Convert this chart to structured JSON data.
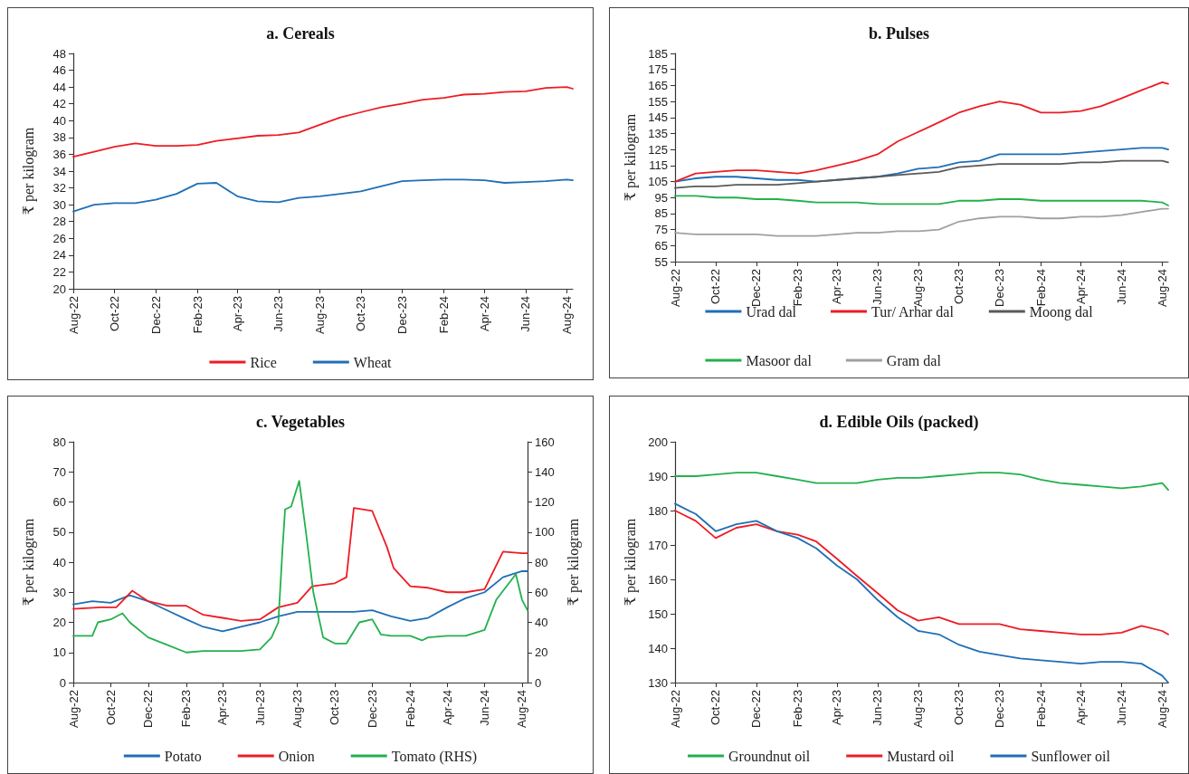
{
  "chart_data": [
    {
      "type": "line",
      "title": "a. Cereals",
      "ylabel": "₹ per kilogram",
      "legend": "bottom",
      "grid": false,
      "marker": "none",
      "line_style": "solid",
      "x": [
        "2022-08-01",
        "2022-09-01",
        "2022-10-01",
        "2022-11-01",
        "2022-12-01",
        "2023-01-01",
        "2023-02-01",
        "2023-03-01",
        "2023-04-01",
        "2023-05-01",
        "2023-06-01",
        "2023-07-01",
        "2023-08-01",
        "2023-09-01",
        "2023-10-01",
        "2023-11-01",
        "2023-12-01",
        "2024-01-01",
        "2024-02-01",
        "2024-03-01",
        "2024-04-01",
        "2024-05-01",
        "2024-06-01",
        "2024-07-01",
        "2024-08-01",
        "2024-08-10"
      ],
      "xlim": [
        "2022-08-01",
        "2024-08-10"
      ],
      "xticks": [
        {
          "value": "2022-08",
          "label": "Aug-22"
        },
        {
          "value": "2022-10",
          "label": "Oct-22"
        },
        {
          "value": "2022-12",
          "label": "Dec-22"
        },
        {
          "value": "2023-02",
          "label": "Feb-23"
        },
        {
          "value": "2023-04",
          "label": "Apr-23"
        },
        {
          "value": "2023-06",
          "label": "Jun-23"
        },
        {
          "value": "2023-08",
          "label": "Aug-23"
        },
        {
          "value": "2023-10",
          "label": "Oct-23"
        },
        {
          "value": "2023-12",
          "label": "Dec-23"
        },
        {
          "value": "2024-02",
          "label": "Feb-24"
        },
        {
          "value": "2024-04",
          "label": "Apr-24"
        },
        {
          "value": "2024-06",
          "label": "Jun-24"
        },
        {
          "value": "2024-08",
          "label": "Aug-24"
        }
      ],
      "ylim": [
        20,
        48
      ],
      "yticks": [
        20,
        22,
        24,
        26,
        28,
        30,
        32,
        34,
        36,
        38,
        40,
        42,
        44,
        46,
        48
      ],
      "series": [
        {
          "name": "Rice",
          "color": "#ed1c24",
          "values": [
            35.7,
            36.3,
            36.9,
            37.3,
            37.0,
            37.0,
            37.1,
            37.6,
            37.9,
            38.2,
            38.3,
            38.6,
            39.5,
            40.4,
            41.0,
            41.6,
            42.0,
            42.5,
            42.7,
            43.1,
            43.2,
            43.4,
            43.5,
            43.9,
            44.0,
            43.8
          ]
        },
        {
          "name": "Wheat",
          "color": "#1f6fb5",
          "values": [
            29.2,
            30.0,
            30.2,
            30.2,
            30.6,
            31.3,
            32.5,
            32.6,
            31.0,
            30.4,
            30.3,
            30.8,
            31.0,
            31.3,
            31.6,
            32.2,
            32.8,
            32.9,
            33.0,
            33.0,
            32.9,
            32.6,
            32.7,
            32.8,
            33.0,
            32.9
          ]
        }
      ]
    },
    {
      "type": "line",
      "title": "b. Pulses",
      "ylabel": "₹ per kilogram",
      "legend": "bottom",
      "grid": false,
      "marker": "none",
      "line_style": "solid",
      "x": [
        "2022-08-01",
        "2022-09-01",
        "2022-10-01",
        "2022-11-01",
        "2022-12-01",
        "2023-01-01",
        "2023-02-01",
        "2023-03-01",
        "2023-04-01",
        "2023-05-01",
        "2023-06-01",
        "2023-07-01",
        "2023-08-01",
        "2023-09-01",
        "2023-10-01",
        "2023-11-01",
        "2023-12-01",
        "2024-01-01",
        "2024-02-01",
        "2024-03-01",
        "2024-04-01",
        "2024-05-01",
        "2024-06-01",
        "2024-07-01",
        "2024-08-01",
        "2024-08-10"
      ],
      "xlim": [
        "2022-08-01",
        "2024-08-10"
      ],
      "xticks": [
        {
          "value": "2022-08",
          "label": "Aug-22"
        },
        {
          "value": "2022-10",
          "label": "Oct-22"
        },
        {
          "value": "2022-12",
          "label": "Dec-22"
        },
        {
          "value": "2023-02",
          "label": "Feb-23"
        },
        {
          "value": "2023-04",
          "label": "Apr-23"
        },
        {
          "value": "2023-06",
          "label": "Jun-23"
        },
        {
          "value": "2023-08",
          "label": "Aug-23"
        },
        {
          "value": "2023-10",
          "label": "Oct-23"
        },
        {
          "value": "2023-12",
          "label": "Dec-23"
        },
        {
          "value": "2024-02",
          "label": "Feb-24"
        },
        {
          "value": "2024-04",
          "label": "Apr-24"
        },
        {
          "value": "2024-06",
          "label": "Jun-24"
        },
        {
          "value": "2024-08",
          "label": "Aug-24"
        }
      ],
      "ylim": [
        55,
        185
      ],
      "yticks": [
        55,
        65,
        75,
        85,
        95,
        105,
        115,
        125,
        135,
        145,
        155,
        165,
        175,
        185
      ],
      "series": [
        {
          "name": "Urad dal",
          "color": "#1f6fb5",
          "values": [
            105,
            107,
            108,
            108,
            107,
            106,
            106,
            105,
            106,
            107,
            108,
            110,
            113,
            114,
            117,
            118,
            122,
            122,
            122,
            122,
            123,
            124,
            125,
            126,
            126,
            125
          ]
        },
        {
          "name": "Tur/ Arhar dal",
          "color": "#ed1c24",
          "values": [
            105,
            110,
            111,
            112,
            112,
            111,
            110,
            112,
            115,
            118,
            122,
            130,
            136,
            142,
            148,
            152,
            155,
            153,
            148,
            148,
            149,
            152,
            157,
            162,
            167,
            166
          ]
        },
        {
          "name": "Moong dal",
          "color": "#595959",
          "values": [
            101,
            102,
            102,
            103,
            103,
            103,
            104,
            105,
            106,
            107,
            108,
            109,
            110,
            111,
            114,
            115,
            116,
            116,
            116,
            116,
            117,
            117,
            118,
            118,
            118,
            117
          ]
        },
        {
          "name": "Masoor dal",
          "color": "#22b14c",
          "values": [
            96,
            96,
            95,
            95,
            94,
            94,
            93,
            92,
            92,
            92,
            91,
            91,
            91,
            91,
            93,
            93,
            94,
            94,
            93,
            93,
            93,
            93,
            93,
            93,
            92,
            90
          ]
        },
        {
          "name": "Gram dal",
          "color": "#a0a0a0",
          "values": [
            73,
            72,
            72,
            72,
            72,
            71,
            71,
            71,
            72,
            73,
            73,
            74,
            74,
            75,
            80,
            82,
            83,
            83,
            82,
            82,
            83,
            83,
            84,
            86,
            88,
            88
          ]
        }
      ]
    },
    {
      "type": "line",
      "title": "c. Vegetables",
      "ylabel": "₹ per kilogram",
      "y2label": "₹ per kilogram",
      "legend": "bottom",
      "grid": false,
      "marker": "none",
      "line_style": "solid",
      "x": [
        "2022-08-01",
        "2022-09-01",
        "2022-10-01",
        "2022-11-01",
        "2022-12-01",
        "2023-01-01",
        "2023-02-01",
        "2023-03-01",
        "2023-04-01",
        "2023-05-01",
        "2023-06-01",
        "2023-07-01",
        "2023-08-01",
        "2023-09-01",
        "2023-10-01",
        "2023-11-01",
        "2023-12-01",
        "2024-01-01",
        "2024-02-01",
        "2024-03-01",
        "2024-04-01",
        "2024-05-01",
        "2024-06-01",
        "2024-07-01",
        "2024-08-01",
        "2024-08-10"
      ],
      "xlim": [
        "2022-08-01",
        "2024-08-10"
      ],
      "xticks": [
        {
          "value": "2022-08",
          "label": "Aug-22"
        },
        {
          "value": "2022-10",
          "label": "Oct-22"
        },
        {
          "value": "2022-12",
          "label": "Dec-22"
        },
        {
          "value": "2023-02",
          "label": "Feb-23"
        },
        {
          "value": "2023-04",
          "label": "Apr-23"
        },
        {
          "value": "2023-06",
          "label": "Jun-23"
        },
        {
          "value": "2023-08",
          "label": "Aug-23"
        },
        {
          "value": "2023-10",
          "label": "Oct-23"
        },
        {
          "value": "2023-12",
          "label": "Dec-23"
        },
        {
          "value": "2024-02",
          "label": "Feb-24"
        },
        {
          "value": "2024-04",
          "label": "Apr-24"
        },
        {
          "value": "2024-06",
          "label": "Jun-24"
        },
        {
          "value": "2024-08",
          "label": "Aug-24"
        }
      ],
      "ylim": [
        0,
        80
      ],
      "yticks": [
        0,
        10,
        20,
        30,
        40,
        50,
        60,
        70,
        80
      ],
      "y2lim": [
        0,
        160
      ],
      "y2ticks": [
        0,
        20,
        40,
        60,
        80,
        100,
        120,
        140,
        160
      ],
      "series": [
        {
          "name": "Potato",
          "color": "#1f6fb5",
          "values": [
            26,
            27,
            26.5,
            29,
            27,
            24,
            21,
            18.5,
            17,
            18.5,
            20,
            22,
            23.5,
            23.5,
            23.5,
            23.5,
            24,
            22,
            20.5,
            21.5,
            25,
            28,
            30,
            35,
            37,
            37
          ]
        },
        {
          "name": "Onion",
          "color": "#ed1c24",
          "x": [
            "2022-08-01",
            "2022-09-15",
            "2022-10-10",
            "2022-11-05",
            "2022-12-01",
            "2023-01-01",
            "2023-02-01",
            "2023-03-01",
            "2023-04-01",
            "2023-05-01",
            "2023-06-01",
            "2023-07-01",
            "2023-08-01",
            "2023-08-25",
            "2023-10-01",
            "2023-10-20",
            "2023-11-01",
            "2023-12-01",
            "2023-12-25",
            "2024-01-05",
            "2024-02-01",
            "2024-03-01",
            "2024-04-01",
            "2024-05-01",
            "2024-06-01",
            "2024-07-01",
            "2024-08-01",
            "2024-08-10"
          ],
          "values": [
            24.5,
            25,
            25,
            30.5,
            27,
            25.5,
            25.5,
            22.5,
            21.5,
            20.5,
            21,
            25,
            26.5,
            32,
            33,
            35,
            58,
            57,
            45,
            38,
            32,
            31.5,
            30,
            30,
            31,
            43.5,
            43,
            43
          ]
        },
        {
          "name": "Tomato (RHS)",
          "color": "#22b14c",
          "axis": "y2",
          "x": [
            "2022-08-01",
            "2022-09-01",
            "2022-09-10",
            "2022-10-01",
            "2022-10-20",
            "2022-11-01",
            "2022-12-01",
            "2023-01-01",
            "2023-02-01",
            "2023-03-01",
            "2023-04-01",
            "2023-05-01",
            "2023-06-01",
            "2023-06-20",
            "2023-07-01",
            "2023-07-08",
            "2023-07-12",
            "2023-07-22",
            "2023-08-04",
            "2023-08-15",
            "2023-08-27",
            "2023-09-12",
            "2023-10-01",
            "2023-10-20",
            "2023-11-10",
            "2023-12-01",
            "2023-12-15",
            "2024-01-01",
            "2024-02-01",
            "2024-02-20",
            "2024-03-01",
            "2024-04-01",
            "2024-05-01",
            "2024-06-01",
            "2024-06-20",
            "2024-07-22",
            "2024-08-01",
            "2024-08-10"
          ],
          "values": [
            31,
            31,
            40,
            42,
            46,
            40,
            30,
            25,
            20,
            21,
            21,
            21,
            22,
            30,
            40,
            90,
            115,
            117,
            134,
            100,
            60,
            30,
            26,
            26,
            40,
            42,
            32,
            31,
            31,
            28,
            30,
            31,
            31,
            35,
            55,
            72,
            55,
            48
          ]
        }
      ]
    },
    {
      "type": "line",
      "title": "d. Edible Oils (packed)",
      "ylabel": "₹ per kilogram",
      "legend": "bottom",
      "grid": false,
      "marker": "none",
      "line_style": "solid",
      "x": [
        "2022-08-01",
        "2022-09-01",
        "2022-10-01",
        "2022-11-01",
        "2022-12-01",
        "2023-01-01",
        "2023-02-01",
        "2023-03-01",
        "2023-04-01",
        "2023-05-01",
        "2023-06-01",
        "2023-07-01",
        "2023-08-01",
        "2023-09-01",
        "2023-10-01",
        "2023-11-01",
        "2023-12-01",
        "2024-01-01",
        "2024-02-01",
        "2024-03-01",
        "2024-04-01",
        "2024-05-01",
        "2024-06-01",
        "2024-07-01",
        "2024-08-01",
        "2024-08-10"
      ],
      "xlim": [
        "2022-08-01",
        "2024-08-10"
      ],
      "xticks": [
        {
          "value": "2022-08",
          "label": "Aug-22"
        },
        {
          "value": "2022-10",
          "label": "Oct-22"
        },
        {
          "value": "2022-12",
          "label": "Dec-22"
        },
        {
          "value": "2023-02",
          "label": "Feb-23"
        },
        {
          "value": "2023-04",
          "label": "Apr-23"
        },
        {
          "value": "2023-06",
          "label": "Jun-23"
        },
        {
          "value": "2023-08",
          "label": "Aug-23"
        },
        {
          "value": "2023-10",
          "label": "Oct-23"
        },
        {
          "value": "2023-12",
          "label": "Dec-23"
        },
        {
          "value": "2024-02",
          "label": "Feb-24"
        },
        {
          "value": "2024-04",
          "label": "Apr-24"
        },
        {
          "value": "2024-06",
          "label": "Jun-24"
        },
        {
          "value": "2024-08",
          "label": "Aug-24"
        }
      ],
      "ylim": [
        130,
        200
      ],
      "yticks": [
        130,
        140,
        150,
        160,
        170,
        180,
        190,
        200
      ],
      "series": [
        {
          "name": "Groundnut oil",
          "color": "#22b14c",
          "values": [
            190,
            190,
            190.5,
            191,
            191,
            190,
            189,
            188,
            188,
            188,
            189,
            189.5,
            189.5,
            190,
            190.5,
            191,
            191,
            190.5,
            189,
            188,
            187.5,
            187,
            186.5,
            187,
            188,
            186
          ]
        },
        {
          "name": "Mustard oil",
          "color": "#ed1c24",
          "values": [
            180,
            177,
            172,
            175,
            176,
            174,
            173,
            171,
            166,
            161,
            156,
            151,
            148,
            149,
            147,
            147,
            147,
            145.5,
            145,
            144.5,
            144,
            144,
            144.5,
            146.5,
            145,
            144
          ]
        },
        {
          "name": "Sunflower oil",
          "color": "#1f6fb5",
          "values": [
            182,
            179,
            174,
            176,
            177,
            174,
            172,
            169,
            164,
            160,
            154,
            149,
            145,
            144,
            141,
            139,
            138,
            137,
            136.5,
            136,
            135.5,
            136,
            136,
            135.5,
            132,
            130
          ]
        }
      ]
    }
  ]
}
